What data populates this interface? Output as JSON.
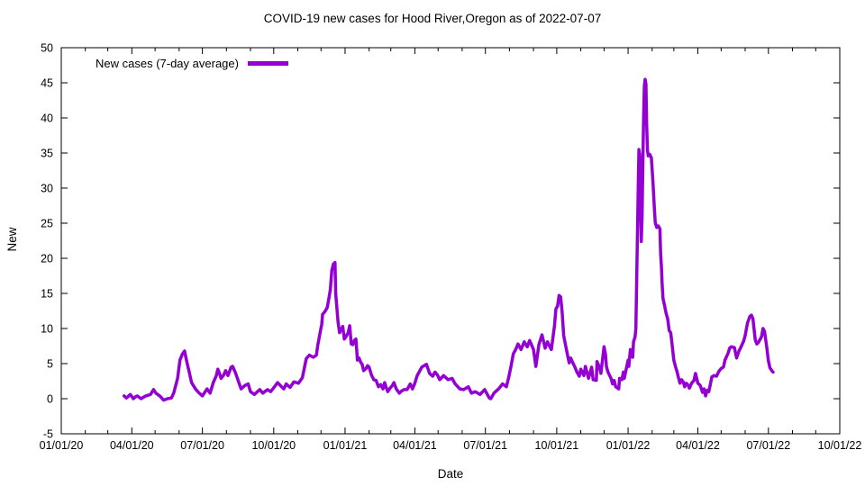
{
  "chart_data": {
    "type": "line",
    "title": "COVID-19 new cases for Hood River,Oregon as of 2022-07-07",
    "xlabel": "Date",
    "ylabel": "New",
    "series_name": "New cases (7-day average)",
    "legend_position": "top-left-inside",
    "grid": false,
    "line_color": "#9400d3",
    "x_unit": "days since 2020-01-01",
    "xlim": [
      0,
      1004
    ],
    "ylim": [
      -5,
      50
    ],
    "y_ticks": [
      -5,
      0,
      5,
      10,
      15,
      20,
      25,
      30,
      35,
      40,
      45,
      50
    ],
    "x_ticks": [
      {
        "day": 0,
        "label": "01/01/20"
      },
      {
        "day": 91,
        "label": "04/01/20"
      },
      {
        "day": 182,
        "label": "07/01/20"
      },
      {
        "day": 274,
        "label": "10/01/20"
      },
      {
        "day": 366,
        "label": "01/01/21"
      },
      {
        "day": 456,
        "label": "04/01/21"
      },
      {
        "day": 547,
        "label": "07/01/21"
      },
      {
        "day": 639,
        "label": "10/01/21"
      },
      {
        "day": 731,
        "label": "01/01/22"
      },
      {
        "day": 821,
        "label": "04/01/22"
      },
      {
        "day": 912,
        "label": "07/01/22"
      },
      {
        "day": 1004,
        "label": "10/01/22"
      }
    ],
    "x_minor_tick_days": [
      31,
      60,
      121,
      152,
      213,
      244,
      305,
      335,
      397,
      425,
      486,
      517,
      578,
      609,
      670,
      700,
      762,
      790,
      851,
      882,
      943,
      973
    ],
    "points": [
      [
        81,
        0.4
      ],
      [
        84,
        0.1
      ],
      [
        86,
        0.3
      ],
      [
        89,
        0.6
      ],
      [
        93,
        0.0
      ],
      [
        96,
        0.3
      ],
      [
        98,
        0.4
      ],
      [
        103,
        0.0
      ],
      [
        106,
        0.2
      ],
      [
        109,
        0.4
      ],
      [
        115,
        0.6
      ],
      [
        119,
        1.3
      ],
      [
        122,
        0.8
      ],
      [
        127,
        0.4
      ],
      [
        132,
        -0.2
      ],
      [
        137,
        0.0
      ],
      [
        142,
        0.1
      ],
      [
        145,
        0.8
      ],
      [
        150,
        2.9
      ],
      [
        153,
        5.5
      ],
      [
        156,
        6.3
      ],
      [
        159,
        6.8
      ],
      [
        162,
        5.2
      ],
      [
        165,
        3.8
      ],
      [
        168,
        2.3
      ],
      [
        173,
        1.4
      ],
      [
        177,
        0.9
      ],
      [
        182,
        0.4
      ],
      [
        188,
        1.4
      ],
      [
        192,
        0.8
      ],
      [
        196,
        2.3
      ],
      [
        200,
        3.3
      ],
      [
        202,
        4.2
      ],
      [
        204,
        3.6
      ],
      [
        206,
        2.9
      ],
      [
        209,
        3.3
      ],
      [
        212,
        4.0
      ],
      [
        215,
        3.3
      ],
      [
        219,
        4.5
      ],
      [
        221,
        4.6
      ],
      [
        225,
        3.6
      ],
      [
        229,
        2.3
      ],
      [
        232,
        1.4
      ],
      [
        237,
        1.9
      ],
      [
        241,
        2.1
      ],
      [
        244,
        1.0
      ],
      [
        249,
        0.6
      ],
      [
        253,
        1.0
      ],
      [
        256,
        1.3
      ],
      [
        260,
        0.8
      ],
      [
        266,
        1.3
      ],
      [
        270,
        1.0
      ],
      [
        275,
        1.7
      ],
      [
        279,
        2.3
      ],
      [
        284,
        1.7
      ],
      [
        287,
        1.4
      ],
      [
        290,
        2.1
      ],
      [
        295,
        1.6
      ],
      [
        300,
        2.4
      ],
      [
        306,
        2.2
      ],
      [
        311,
        3.0
      ],
      [
        316,
        5.7
      ],
      [
        320,
        6.2
      ],
      [
        325,
        5.9
      ],
      [
        329,
        6.2
      ],
      [
        331,
        7.7
      ],
      [
        334,
        9.5
      ],
      [
        336,
        10.6
      ],
      [
        337,
        12.0
      ],
      [
        340,
        12.4
      ],
      [
        343,
        13.0
      ],
      [
        345,
        14.2
      ],
      [
        347,
        15.5
      ],
      [
        349,
        18.3
      ],
      [
        351,
        19.2
      ],
      [
        353,
        19.4
      ],
      [
        354,
        14.9
      ],
      [
        357,
        10.9
      ],
      [
        359,
        9.4
      ],
      [
        361,
        9.9
      ],
      [
        363,
        10.3
      ],
      [
        365,
        8.5
      ],
      [
        367,
        8.8
      ],
      [
        370,
        9.4
      ],
      [
        372,
        10.4
      ],
      [
        374,
        7.8
      ],
      [
        376,
        7.7
      ],
      [
        378,
        8.3
      ],
      [
        380,
        8.5
      ],
      [
        382,
        5.5
      ],
      [
        384,
        5.8
      ],
      [
        386,
        5.2
      ],
      [
        388,
        4.9
      ],
      [
        390,
        4.0
      ],
      [
        393,
        4.3
      ],
      [
        395,
        4.7
      ],
      [
        397,
        4.5
      ],
      [
        400,
        3.4
      ],
      [
        403,
        2.7
      ],
      [
        406,
        2.6
      ],
      [
        409,
        1.7
      ],
      [
        412,
        2.0
      ],
      [
        415,
        1.4
      ],
      [
        417,
        2.3
      ],
      [
        419,
        1.6
      ],
      [
        421,
        1.0
      ],
      [
        424,
        1.5
      ],
      [
        427,
        1.9
      ],
      [
        429,
        2.3
      ],
      [
        432,
        1.4
      ],
      [
        436,
        0.8
      ],
      [
        439,
        1.1
      ],
      [
        442,
        1.3
      ],
      [
        446,
        1.3
      ],
      [
        450,
        2.1
      ],
      [
        453,
        1.4
      ],
      [
        456,
        2.2
      ],
      [
        459,
        3.3
      ],
      [
        462,
        3.9
      ],
      [
        465,
        4.5
      ],
      [
        468,
        4.7
      ],
      [
        471,
        4.9
      ],
      [
        475,
        3.6
      ],
      [
        479,
        3.2
      ],
      [
        482,
        3.8
      ],
      [
        485,
        3.4
      ],
      [
        488,
        2.7
      ],
      [
        493,
        3.3
      ],
      [
        496,
        3.0
      ],
      [
        499,
        2.7
      ],
      [
        504,
        2.9
      ],
      [
        508,
        2.1
      ],
      [
        514,
        1.4
      ],
      [
        519,
        1.3
      ],
      [
        525,
        1.7
      ],
      [
        529,
        0.8
      ],
      [
        534,
        1.0
      ],
      [
        540,
        0.6
      ],
      [
        546,
        1.3
      ],
      [
        552,
        0.1
      ],
      [
        554,
        0.0
      ],
      [
        558,
        0.8
      ],
      [
        564,
        1.4
      ],
      [
        569,
        2.1
      ],
      [
        574,
        1.7
      ],
      [
        577,
        3.0
      ],
      [
        580,
        4.6
      ],
      [
        583,
        6.4
      ],
      [
        586,
        7.0
      ],
      [
        589,
        7.8
      ],
      [
        593,
        7.0
      ],
      [
        597,
        8.1
      ],
      [
        601,
        7.4
      ],
      [
        604,
        8.3
      ],
      [
        609,
        7.0
      ],
      [
        612,
        4.6
      ],
      [
        616,
        7.7
      ],
      [
        620,
        9.1
      ],
      [
        624,
        7.2
      ],
      [
        627,
        8.1
      ],
      [
        630,
        7.4
      ],
      [
        632,
        7.0
      ],
      [
        636,
        10.3
      ],
      [
        638,
        12.8
      ],
      [
        640,
        13.2
      ],
      [
        642,
        14.7
      ],
      [
        644,
        14.5
      ],
      [
        646,
        12.3
      ],
      [
        648,
        9.0
      ],
      [
        650,
        7.8
      ],
      [
        653,
        6.2
      ],
      [
        655,
        5.1
      ],
      [
        657,
        5.8
      ],
      [
        659,
        5.3
      ],
      [
        662,
        4.6
      ],
      [
        665,
        3.8
      ],
      [
        668,
        3.2
      ],
      [
        670,
        4.2
      ],
      [
        674,
        3.3
      ],
      [
        676,
        4.6
      ],
      [
        680,
        2.9
      ],
      [
        684,
        4.5
      ],
      [
        686,
        2.7
      ],
      [
        690,
        2.6
      ],
      [
        691,
        5.3
      ],
      [
        694,
        4.5
      ],
      [
        696,
        3.6
      ],
      [
        700,
        7.4
      ],
      [
        702,
        6.2
      ],
      [
        703,
        4.6
      ],
      [
        705,
        3.8
      ],
      [
        709,
        2.9
      ],
      [
        711,
        2.1
      ],
      [
        713,
        2.6
      ],
      [
        715,
        1.7
      ],
      [
        719,
        1.4
      ],
      [
        720,
        2.9
      ],
      [
        723,
        2.7
      ],
      [
        725,
        3.8
      ],
      [
        726,
        2.9
      ],
      [
        731,
        5.5
      ],
      [
        732,
        4.6
      ],
      [
        734,
        7.0
      ],
      [
        737,
        5.9
      ],
      [
        738,
        8.1
      ],
      [
        740,
        8.8
      ],
      [
        741,
        10.0
      ],
      [
        742,
        16.0
      ],
      [
        743,
        23.0
      ],
      [
        744,
        30.0
      ],
      [
        745,
        35.5
      ],
      [
        746,
        34.8
      ],
      [
        747,
        28.0
      ],
      [
        748,
        22.4
      ],
      [
        749,
        26.0
      ],
      [
        750,
        33.0
      ],
      [
        751,
        40.0
      ],
      [
        752,
        44.5
      ],
      [
        753,
        45.5
      ],
      [
        754,
        44.8
      ],
      [
        755,
        39.0
      ],
      [
        756,
        35.4
      ],
      [
        757,
        34.6
      ],
      [
        759,
        34.8
      ],
      [
        761,
        34.3
      ],
      [
        763,
        31.0
      ],
      [
        765,
        27.0
      ],
      [
        766,
        25.1
      ],
      [
        768,
        24.4
      ],
      [
        770,
        24.6
      ],
      [
        772,
        24.2
      ],
      [
        773,
        20.6
      ],
      [
        774,
        18.7
      ],
      [
        775,
        16.2
      ],
      [
        776,
        14.3
      ],
      [
        778,
        13.3
      ],
      [
        780,
        12.2
      ],
      [
        782,
        11.4
      ],
      [
        784,
        9.7
      ],
      [
        786,
        9.4
      ],
      [
        788,
        7.5
      ],
      [
        790,
        5.5
      ],
      [
        792,
        4.6
      ],
      [
        794,
        3.9
      ],
      [
        796,
        3.0
      ],
      [
        798,
        2.2
      ],
      [
        800,
        2.7
      ],
      [
        802,
        2.4
      ],
      [
        804,
        1.7
      ],
      [
        806,
        2.2
      ],
      [
        808,
        2.0
      ],
      [
        810,
        1.5
      ],
      [
        813,
        2.2
      ],
      [
        816,
        2.6
      ],
      [
        818,
        3.6
      ],
      [
        821,
        2.2
      ],
      [
        824,
        1.9
      ],
      [
        827,
        0.9
      ],
      [
        829,
        1.4
      ],
      [
        831,
        0.4
      ],
      [
        833,
        1.2
      ],
      [
        835,
        1.0
      ],
      [
        837,
        2.0
      ],
      [
        839,
        3.1
      ],
      [
        842,
        3.3
      ],
      [
        845,
        3.2
      ],
      [
        848,
        3.9
      ],
      [
        851,
        4.3
      ],
      [
        854,
        4.5
      ],
      [
        856,
        5.5
      ],
      [
        860,
        6.5
      ],
      [
        862,
        7.2
      ],
      [
        864,
        7.4
      ],
      [
        868,
        7.3
      ],
      [
        871,
        5.8
      ],
      [
        874,
        6.8
      ],
      [
        876,
        7.2
      ],
      [
        880,
        8.2
      ],
      [
        882,
        9.0
      ],
      [
        885,
        10.8
      ],
      [
        888,
        11.7
      ],
      [
        890,
        11.9
      ],
      [
        892,
        11.4
      ],
      [
        895,
        8.4
      ],
      [
        897,
        7.8
      ],
      [
        899,
        8.0
      ],
      [
        903,
        8.8
      ],
      [
        905,
        10.0
      ],
      [
        907,
        9.6
      ],
      [
        910,
        7.2
      ],
      [
        912,
        5.4
      ],
      [
        914,
        4.4
      ],
      [
        917,
        3.9
      ],
      [
        918,
        3.8
      ]
    ]
  }
}
